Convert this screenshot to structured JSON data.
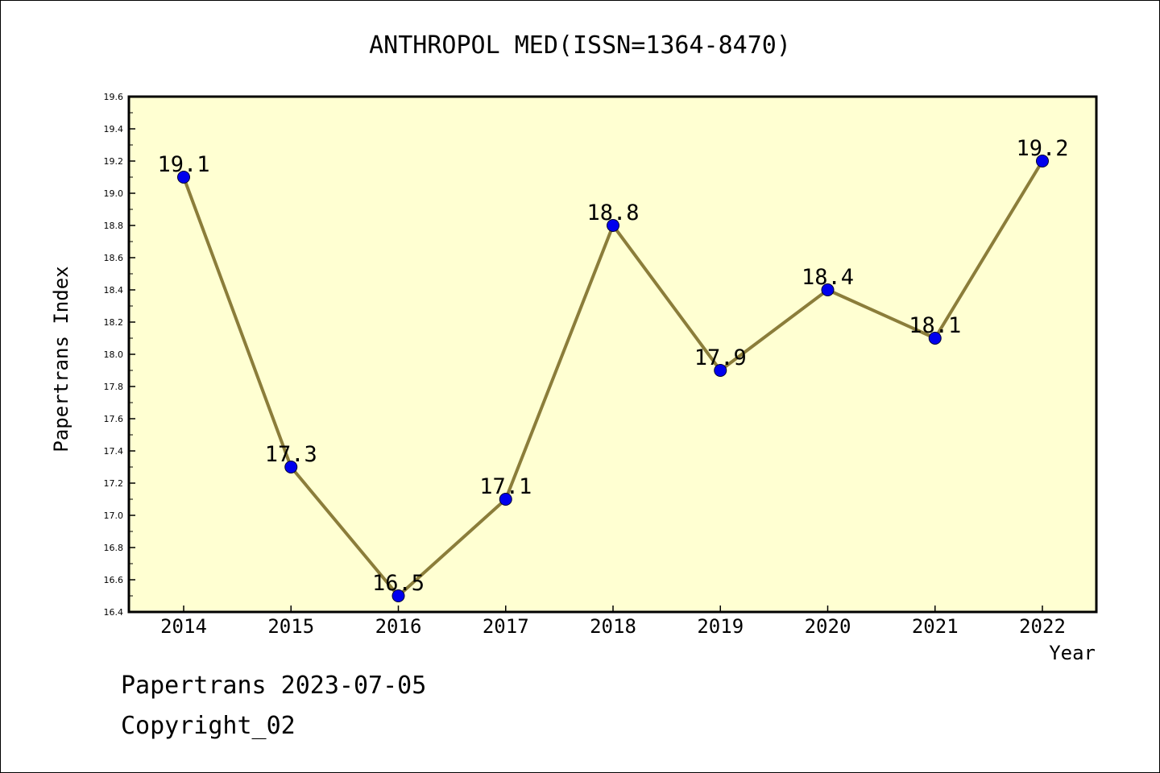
{
  "chart_data": {
    "type": "line",
    "title": "ANTHROPOL MED(ISSN=1364-8470)",
    "xlabel": "Year",
    "ylabel": "Papertrans Index",
    "categories": [
      "2014",
      "2015",
      "2016",
      "2017",
      "2018",
      "2019",
      "2020",
      "2021",
      "2022"
    ],
    "series": [
      {
        "values": [
          19.1,
          17.3,
          16.5,
          17.1,
          18.8,
          17.9,
          18.4,
          18.1,
          19.2
        ],
        "data_labels": [
          "19.1",
          "17.3",
          "16.5",
          "17.1",
          "18.8",
          "17.9",
          "18.4",
          "18.1",
          "19.2"
        ]
      }
    ],
    "ylim": [
      16.4,
      19.6
    ],
    "y_ticks": [
      "16.4",
      "16.6",
      "16.8",
      "17.0",
      "17.2",
      "17.4",
      "17.6",
      "17.8",
      "18.0",
      "18.2",
      "18.4",
      "18.6",
      "18.8",
      "19.0",
      "19.2",
      "19.4",
      "19.6"
    ],
    "grid": false,
    "legend": "none",
    "colors": {
      "plot_background": "#ffffd2",
      "line": "#8b7d3a",
      "marker": "#0000ee"
    }
  },
  "footer": {
    "line1": "Papertrans 2023-07-05",
    "line2": "Copyright_02"
  }
}
